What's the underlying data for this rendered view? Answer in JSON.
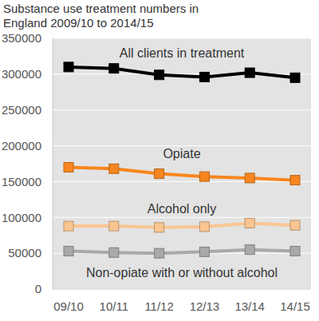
{
  "chart_data": {
    "type": "line",
    "title": "Substance use treatment numbers in England 2009/10 to 2014/15",
    "categories": [
      "09/10",
      "10/11",
      "11/12",
      "12/13",
      "13/14",
      "14/15"
    ],
    "series": [
      {
        "name": "All clients in treatment",
        "color": "#000000",
        "values": [
          310000,
          308000,
          299000,
          296000,
          302000,
          295000
        ]
      },
      {
        "name": "Opiate",
        "color": "#f7861f",
        "values": [
          170000,
          168000,
          161000,
          157000,
          155000,
          152000
        ]
      },
      {
        "name": "Alcohol only",
        "color": "#f9c591",
        "values": [
          88000,
          88000,
          86000,
          87000,
          92000,
          89000
        ]
      },
      {
        "name": "Non-opiate with or without alcohol",
        "color": "#a9a9a9",
        "values": [
          53000,
          51000,
          50000,
          52000,
          55000,
          53000
        ]
      }
    ],
    "ylim": [
      0,
      350000
    ],
    "yticks": [
      0,
      50000,
      100000,
      150000,
      200000,
      250000,
      300000,
      350000
    ],
    "grid": true,
    "marker": "square"
  }
}
